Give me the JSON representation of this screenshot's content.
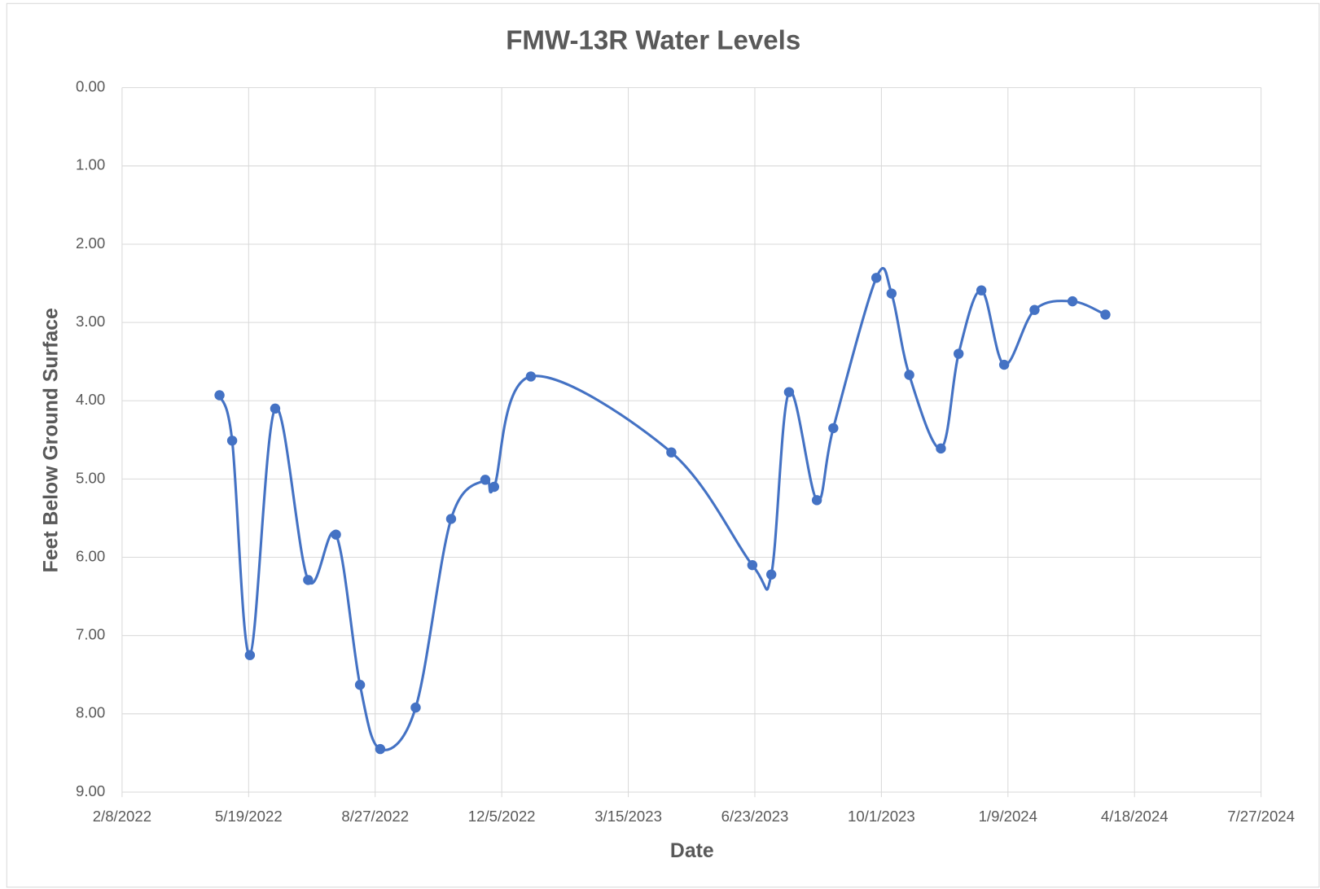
{
  "chart_data": {
    "type": "line",
    "title": "FMW-13R Water Levels",
    "x_label": "Date",
    "y_label": "Feet Below Ground Surface",
    "x": [
      "4/26/2022",
      "5/6/2022",
      "5/20/2022",
      "6/9/2022",
      "7/5/2022",
      "7/27/2022",
      "8/15/2022",
      "8/31/2022",
      "9/28/2022",
      "10/26/2022",
      "11/22/2022",
      "11/29/2022",
      "12/28/2022",
      "4/18/2023",
      "6/21/2023",
      "7/6/2023",
      "7/20/2023",
      "8/11/2023",
      "8/24/2023",
      "9/27/2023",
      "10/9/2023",
      "10/23/2023",
      "11/17/2023",
      "12/1/2023",
      "12/19/2023",
      "1/6/2024",
      "1/30/2024",
      "2/29/2024",
      "3/26/2024"
    ],
    "series": [
      {
        "name": "FMW-13R",
        "color": "#4472c4",
        "values": [
          3.93,
          4.51,
          7.25,
          4.1,
          6.29,
          5.71,
          7.63,
          8.45,
          7.92,
          5.51,
          5.01,
          5.1,
          3.69,
          4.66,
          6.1,
          6.22,
          3.89,
          5.27,
          4.35,
          2.43,
          2.63,
          3.67,
          4.61,
          3.4,
          2.59,
          3.54,
          2.84,
          2.73,
          2.9
        ]
      }
    ],
    "xlim": [
      "2/8/2022",
      "7/27/2024"
    ],
    "xticks": [
      "2/8/2022",
      "5/19/2022",
      "8/27/2022",
      "12/5/2022",
      "3/15/2023",
      "6/23/2023",
      "10/1/2023",
      "1/9/2024",
      "4/18/2024",
      "7/27/2024"
    ],
    "ylim": [
      0,
      9
    ],
    "y_inverted": true,
    "yticks": [
      {
        "value": 0,
        "label": "0.00"
      },
      {
        "value": 1,
        "label": "1.00"
      },
      {
        "value": 2,
        "label": "2.00"
      },
      {
        "value": 3,
        "label": "3.00"
      },
      {
        "value": 4,
        "label": "4.00"
      },
      {
        "value": 5,
        "label": "5.00"
      },
      {
        "value": 6,
        "label": "6.00"
      },
      {
        "value": 7,
        "label": "7.00"
      },
      {
        "value": 8,
        "label": "8.00"
      },
      {
        "value": 9,
        "label": "9.00"
      }
    ],
    "grid": true,
    "smooth": true,
    "markers": true
  }
}
